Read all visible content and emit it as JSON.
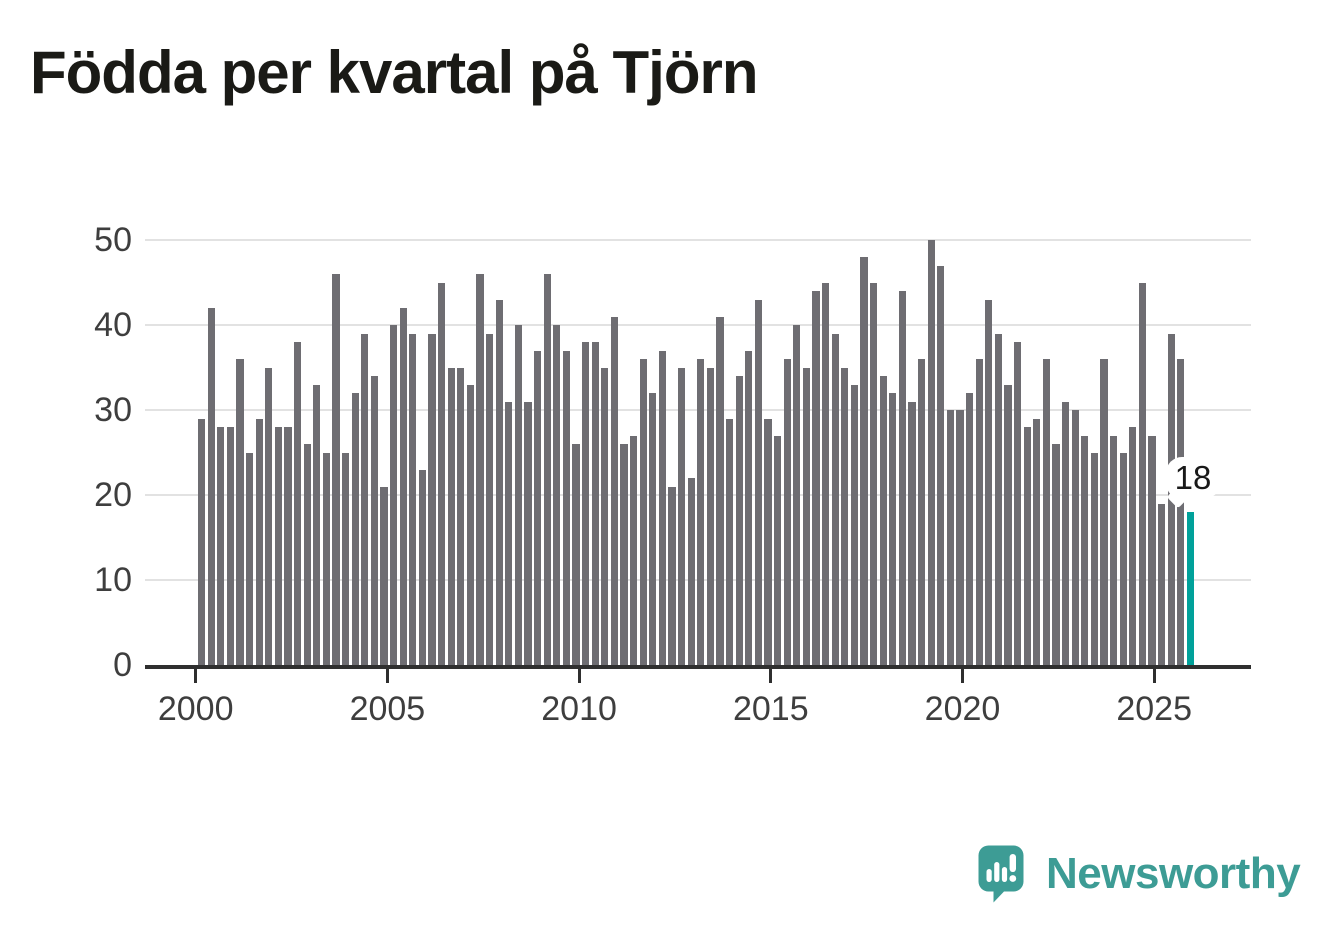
{
  "title": "Födda per kvartal på Tjörn",
  "chart_data": {
    "type": "bar",
    "title": "Födda per kvartal på Tjörn",
    "frequency": "quarterly",
    "x_start": "2000 Q1",
    "x_end": "2025 Q4",
    "x_tick_labels": [
      "2000",
      "2005",
      "2010",
      "2015",
      "2020",
      "2025"
    ],
    "y_tick_labels": [
      0,
      10,
      20,
      30,
      40,
      50
    ],
    "ylim": [
      0,
      50
    ],
    "grid": true,
    "legend": false,
    "series": [
      {
        "name": "Födda per kvartal",
        "values": [
          29,
          42,
          28,
          28,
          36,
          25,
          29,
          35,
          28,
          28,
          38,
          26,
          33,
          25,
          46,
          25,
          32,
          39,
          34,
          21,
          40,
          42,
          39,
          23,
          39,
          45,
          35,
          35,
          33,
          46,
          39,
          43,
          31,
          40,
          31,
          37,
          46,
          40,
          37,
          26,
          38,
          38,
          35,
          41,
          26,
          27,
          36,
          32,
          37,
          21,
          35,
          22,
          36,
          35,
          41,
          29,
          34,
          37,
          43,
          29,
          27,
          36,
          40,
          35,
          44,
          45,
          39,
          35,
          33,
          48,
          45,
          34,
          32,
          44,
          31,
          36,
          50,
          47,
          30,
          30,
          32,
          36,
          43,
          39,
          33,
          38,
          28,
          29,
          36,
          26,
          31,
          30,
          27,
          25,
          36,
          27,
          25,
          28,
          45,
          27,
          19,
          39,
          36,
          18
        ]
      }
    ],
    "annotation_label": "18",
    "highlight_last_bar": {
      "value": 18,
      "label": "18"
    }
  },
  "branding": {
    "name": "Newsworthy",
    "logo_icon": "speech-bubble-bar-chart-icon"
  },
  "colors": {
    "bar": "#6e6d72",
    "highlight_bar": "#00a19a",
    "gridline": "#e2e2e2",
    "axis": "#2f2f2f",
    "axis_text": "#3e3e3e",
    "title_text": "#1a1a16",
    "logo": "#3d9c95"
  }
}
